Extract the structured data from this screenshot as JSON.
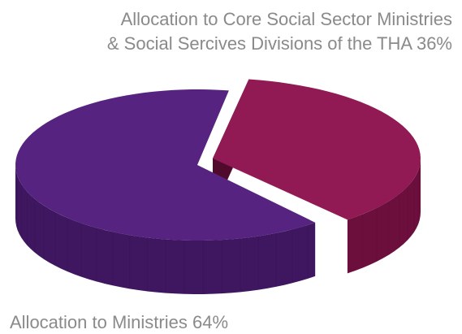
{
  "chart_data": {
    "type": "pie",
    "style": "3d-exploded",
    "title": "",
    "slices": [
      {
        "label_lines": [
          "Allocation to Ministries 64%"
        ],
        "value": 64,
        "color": "#572381",
        "side_color": "#3f1660"
      },
      {
        "label_lines": [
          "Allocation to Core Social Sector Ministries",
          "& Social Sercives Divisions of the THA 36%"
        ],
        "value": 36,
        "color": "#911a55",
        "side_color": "#6c0f3d"
      }
    ],
    "legend": "none"
  }
}
